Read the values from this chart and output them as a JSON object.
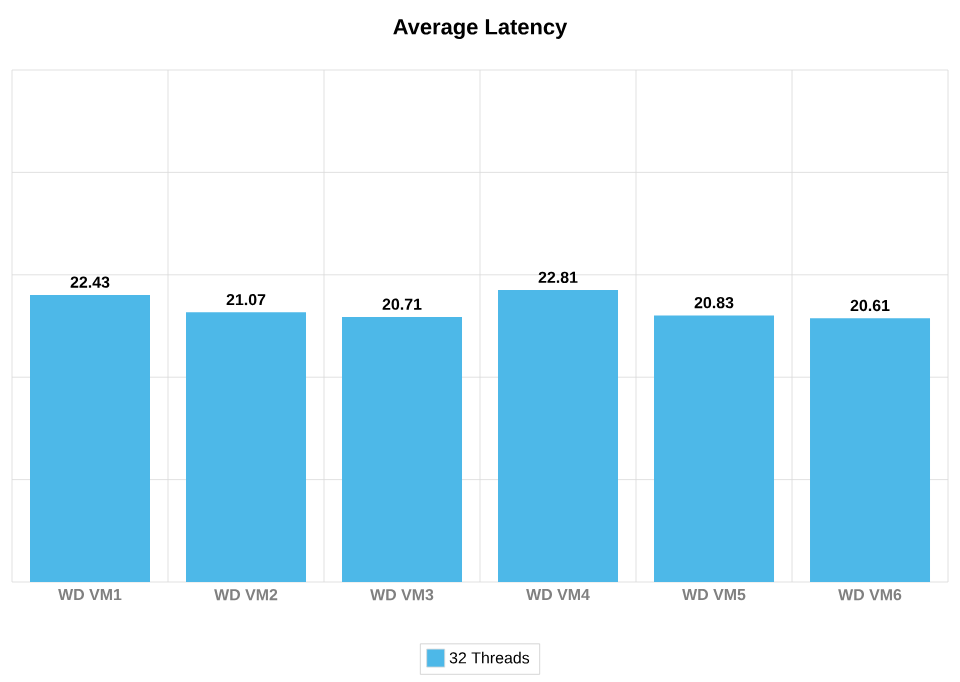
{
  "chart_data": {
    "type": "bar",
    "title": "Average Latency",
    "categories": [
      "WD VM1",
      "WD VM2",
      "WD VM3",
      "WD VM4",
      "WD VM5",
      "WD VM6"
    ],
    "series": [
      {
        "name": "32 Threads",
        "color": "#4db8e8",
        "values": [
          22.43,
          21.07,
          20.71,
          22.81,
          20.83,
          20.61
        ]
      }
    ],
    "ylim": [
      0,
      40
    ],
    "yticks": [
      {
        "value": 0,
        "label": null
      },
      {
        "value": 8,
        "label": null
      },
      {
        "value": 16,
        "label": null
      },
      {
        "value": 24,
        "label": null
      },
      {
        "value": 32,
        "label": null
      },
      {
        "value": 40,
        "label": null
      }
    ],
    "tick_labels": "x",
    "data_labels": true,
    "grid": true,
    "legend": "bottom"
  }
}
